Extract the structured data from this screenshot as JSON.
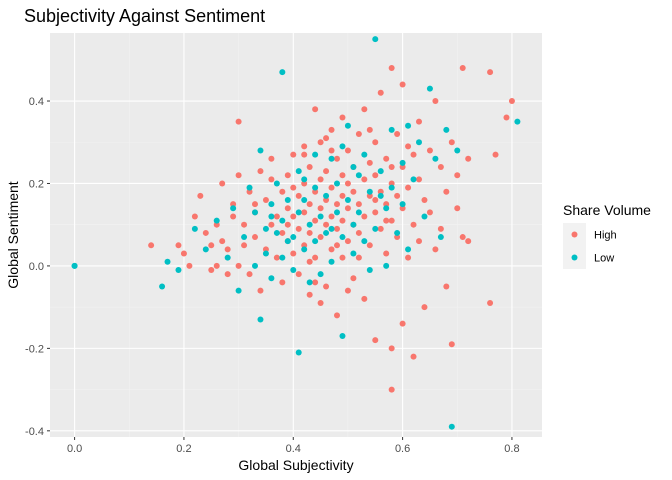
{
  "chart_data": {
    "type": "scatter",
    "title": "Subjectivity Against Sentiment",
    "xlabel": "Global Subjectivity",
    "ylabel": "Global Sentiment",
    "xlim": [
      -0.045,
      0.855
    ],
    "ylim": [
      -0.415,
      0.565
    ],
    "xticks": [
      0.0,
      0.2,
      0.4,
      0.6,
      0.8
    ],
    "xtick_labels": [
      "0.0",
      "0.2",
      "0.4",
      "0.6",
      "0.8"
    ],
    "yticks": [
      -0.4,
      -0.2,
      0.0,
      0.2,
      0.4
    ],
    "ytick_labels": [
      "-0.4",
      "-0.2",
      "0.0",
      "0.2",
      "0.4"
    ],
    "grid": true,
    "legend": {
      "title": "Share Volume",
      "placement": "right",
      "entries": [
        {
          "label": "High",
          "color": "#F8766D"
        },
        {
          "label": "Low",
          "color": "#00BFC4"
        }
      ]
    },
    "series": [
      {
        "name": "High",
        "color": "#F8766D",
        "points": [
          [
            0.14,
            0.05
          ],
          [
            0.19,
            0.05
          ],
          [
            0.2,
            0.03
          ],
          [
            0.21,
            0.0
          ],
          [
            0.22,
            0.12
          ],
          [
            0.23,
            0.17
          ],
          [
            0.24,
            0.08
          ],
          [
            0.25,
            -0.01
          ],
          [
            0.25,
            0.05
          ],
          [
            0.26,
            0.1
          ],
          [
            0.26,
            0.0
          ],
          [
            0.27,
            0.2
          ],
          [
            0.27,
            0.06
          ],
          [
            0.28,
            0.04
          ],
          [
            0.28,
            -0.02
          ],
          [
            0.29,
            0.12
          ],
          [
            0.29,
            0.15
          ],
          [
            0.3,
            0.35
          ],
          [
            0.3,
            0.22
          ],
          [
            0.3,
            0.0
          ],
          [
            0.31,
            0.1
          ],
          [
            0.31,
            0.05
          ],
          [
            0.32,
            -0.02
          ],
          [
            0.32,
            0.18
          ],
          [
            0.33,
            0.13
          ],
          [
            0.33,
            0.07
          ],
          [
            0.34,
            0.23
          ],
          [
            0.34,
            -0.06
          ],
          [
            0.35,
            0.04
          ],
          [
            0.35,
            0.16
          ],
          [
            0.36,
            0.1
          ],
          [
            0.36,
            0.26
          ],
          [
            0.37,
            0.12
          ],
          [
            0.37,
            0.02
          ],
          [
            0.38,
            0.18
          ],
          [
            0.38,
            0.08
          ],
          [
            0.38,
            -0.04
          ],
          [
            0.39,
            0.14
          ],
          [
            0.39,
            0.22
          ],
          [
            0.39,
            0.06
          ],
          [
            0.4,
            0.12
          ],
          [
            0.4,
            0.27
          ],
          [
            0.4,
            0.03
          ],
          [
            0.41,
            0.17
          ],
          [
            0.41,
            0.09
          ],
          [
            0.41,
            -0.02
          ],
          [
            0.42,
            0.2
          ],
          [
            0.42,
            0.13
          ],
          [
            0.42,
            0.05
          ],
          [
            0.42,
            0.29
          ],
          [
            0.43,
            0.15
          ],
          [
            0.43,
            0.24
          ],
          [
            0.43,
            0.08
          ],
          [
            0.43,
            -0.07
          ],
          [
            0.44,
            0.18
          ],
          [
            0.44,
            0.11
          ],
          [
            0.44,
            0.38
          ],
          [
            0.44,
            0.02
          ],
          [
            0.45,
            0.21
          ],
          [
            0.45,
            0.14
          ],
          [
            0.45,
            0.3
          ],
          [
            0.45,
            0.07
          ],
          [
            0.46,
            0.16
          ],
          [
            0.46,
            0.23
          ],
          [
            0.46,
            -0.05
          ],
          [
            0.46,
            0.1
          ],
          [
            0.47,
            0.19
          ],
          [
            0.47,
            0.12
          ],
          [
            0.47,
            0.33
          ],
          [
            0.47,
            0.04
          ],
          [
            0.48,
            0.15
          ],
          [
            0.48,
            0.26
          ],
          [
            0.48,
            0.09
          ],
          [
            0.48,
            -0.12
          ],
          [
            0.49,
            0.17
          ],
          [
            0.49,
            0.22
          ],
          [
            0.49,
            0.11
          ],
          [
            0.49,
            0.02
          ],
          [
            0.5,
            0.14
          ],
          [
            0.5,
            0.28
          ],
          [
            0.5,
            0.2
          ],
          [
            0.5,
            0.06
          ],
          [
            0.51,
            0.18
          ],
          [
            0.51,
            0.1
          ],
          [
            0.51,
            -0.03
          ],
          [
            0.51,
            0.24
          ],
          [
            0.52,
            0.15
          ],
          [
            0.52,
            0.32
          ],
          [
            0.52,
            0.08
          ],
          [
            0.53,
            0.21
          ],
          [
            0.53,
            0.12
          ],
          [
            0.53,
            0.38
          ],
          [
            0.53,
            -0.08
          ],
          [
            0.54,
            0.17
          ],
          [
            0.54,
            0.25
          ],
          [
            0.54,
            0.05
          ],
          [
            0.55,
            0.13
          ],
          [
            0.55,
            0.22
          ],
          [
            0.55,
            -0.18
          ],
          [
            0.55,
            0.3
          ],
          [
            0.56,
            0.18
          ],
          [
            0.56,
            0.09
          ],
          [
            0.56,
            0.42
          ],
          [
            0.57,
            0.15
          ],
          [
            0.57,
            0.26
          ],
          [
            0.57,
            0.03
          ],
          [
            0.58,
            0.2
          ],
          [
            0.58,
            0.11
          ],
          [
            0.58,
            0.48
          ],
          [
            0.58,
            -0.2
          ],
          [
            0.58,
            -0.3
          ],
          [
            0.59,
            0.17
          ],
          [
            0.59,
            0.32
          ],
          [
            0.59,
            0.07
          ],
          [
            0.6,
            0.24
          ],
          [
            0.6,
            0.14
          ],
          [
            0.6,
            -0.14
          ],
          [
            0.6,
            0.44
          ],
          [
            0.61,
            0.19
          ],
          [
            0.61,
            0.02
          ],
          [
            0.62,
            0.27
          ],
          [
            0.62,
            0.1
          ],
          [
            0.62,
            -0.22
          ],
          [
            0.63,
            0.21
          ],
          [
            0.63,
            0.35
          ],
          [
            0.63,
            0.06
          ],
          [
            0.64,
            0.16
          ],
          [
            0.64,
            -0.1
          ],
          [
            0.65,
            0.28
          ],
          [
            0.65,
            0.13
          ],
          [
            0.66,
            0.4
          ],
          [
            0.66,
            0.04
          ],
          [
            0.67,
            0.24
          ],
          [
            0.67,
            0.09
          ],
          [
            0.68,
            0.18
          ],
          [
            0.68,
            -0.05
          ],
          [
            0.69,
            0.3
          ],
          [
            0.69,
            -0.19
          ],
          [
            0.7,
            0.14
          ],
          [
            0.7,
            0.22
          ],
          [
            0.71,
            0.48
          ],
          [
            0.71,
            0.07
          ],
          [
            0.72,
            0.06
          ],
          [
            0.72,
            0.26
          ],
          [
            0.76,
            0.47
          ],
          [
            0.76,
            -0.09
          ],
          [
            0.77,
            0.27
          ],
          [
            0.79,
            0.36
          ],
          [
            0.8,
            0.4
          ],
          [
            0.42,
            0.27
          ],
          [
            0.44,
            -0.04
          ],
          [
            0.36,
            0.21
          ],
          [
            0.52,
            0.02
          ],
          [
            0.47,
            0.28
          ],
          [
            0.39,
            0.1
          ],
          [
            0.58,
            0.24
          ],
          [
            0.61,
            0.29
          ],
          [
            0.33,
            0.15
          ],
          [
            0.49,
            0.36
          ],
          [
            0.55,
            0.16
          ],
          [
            0.43,
            0.01
          ],
          [
            0.46,
            0.31
          ],
          [
            0.5,
            -0.06
          ],
          [
            0.57,
            0.11
          ],
          [
            0.4,
            0.19
          ],
          [
            0.54,
            0.33
          ],
          [
            0.48,
            0.05
          ],
          [
            0.45,
            -0.09
          ]
        ]
      },
      {
        "name": "Low",
        "color": "#00BFC4",
        "points": [
          [
            0.0,
            0.0
          ],
          [
            0.0,
            0.0
          ],
          [
            0.16,
            -0.05
          ],
          [
            0.17,
            0.01
          ],
          [
            0.19,
            -0.01
          ],
          [
            0.22,
            0.09
          ],
          [
            0.24,
            0.04
          ],
          [
            0.26,
            0.11
          ],
          [
            0.28,
            0.02
          ],
          [
            0.29,
            0.14
          ],
          [
            0.3,
            -0.06
          ],
          [
            0.31,
            0.07
          ],
          [
            0.32,
            0.19
          ],
          [
            0.33,
            0.0
          ],
          [
            0.33,
            0.13
          ],
          [
            0.34,
            -0.13
          ],
          [
            0.34,
            0.28
          ],
          [
            0.35,
            0.09
          ],
          [
            0.35,
            0.03
          ],
          [
            0.36,
            0.15
          ],
          [
            0.36,
            -0.03
          ],
          [
            0.37,
            0.08
          ],
          [
            0.37,
            0.2
          ],
          [
            0.38,
            0.47
          ],
          [
            0.38,
            0.11
          ],
          [
            0.38,
            0.02
          ],
          [
            0.39,
            0.16
          ],
          [
            0.4,
            0.07
          ],
          [
            0.4,
            -0.01
          ],
          [
            0.41,
            0.13
          ],
          [
            0.41,
            -0.21
          ],
          [
            0.41,
            0.23
          ],
          [
            0.42,
            0.04
          ],
          [
            0.42,
            0.16
          ],
          [
            0.43,
            0.1
          ],
          [
            0.43,
            -0.04
          ],
          [
            0.44,
            0.19
          ],
          [
            0.44,
            0.06
          ],
          [
            0.45,
            0.12
          ],
          [
            0.45,
            -0.02
          ],
          [
            0.46,
            0.17
          ],
          [
            0.46,
            0.08
          ],
          [
            0.47,
            0.26
          ],
          [
            0.47,
            0.01
          ],
          [
            0.48,
            0.13
          ],
          [
            0.48,
            0.2
          ],
          [
            0.49,
            0.07
          ],
          [
            0.49,
            -0.17
          ],
          [
            0.5,
            0.16
          ],
          [
            0.5,
            0.34
          ],
          [
            0.51,
            0.1
          ],
          [
            0.51,
            0.03
          ],
          [
            0.52,
            0.22
          ],
          [
            0.52,
            0.13
          ],
          [
            0.53,
            0.27
          ],
          [
            0.53,
            0.06
          ],
          [
            0.54,
            0.18
          ],
          [
            0.55,
            0.55
          ],
          [
            0.55,
            0.09
          ],
          [
            0.56,
            0.23
          ],
          [
            0.57,
            0.14
          ],
          [
            0.57,
            0.0
          ],
          [
            0.58,
            0.33
          ],
          [
            0.58,
            0.19
          ],
          [
            0.59,
            0.08
          ],
          [
            0.6,
            0.25
          ],
          [
            0.6,
            0.15
          ],
          [
            0.61,
            0.34
          ],
          [
            0.61,
            0.04
          ],
          [
            0.62,
            0.21
          ],
          [
            0.63,
            0.3
          ],
          [
            0.64,
            0.12
          ],
          [
            0.65,
            0.43
          ],
          [
            0.66,
            0.26
          ],
          [
            0.67,
            0.07
          ],
          [
            0.68,
            0.33
          ],
          [
            0.69,
            -0.39
          ],
          [
            0.7,
            0.28
          ],
          [
            0.81,
            0.35
          ],
          [
            0.39,
            0.06
          ],
          [
            0.44,
            0.27
          ],
          [
            0.47,
            0.09
          ],
          [
            0.51,
            0.24
          ],
          [
            0.54,
            -0.01
          ],
          [
            0.36,
            0.12
          ],
          [
            0.42,
            0.21
          ],
          [
            0.56,
            0.17
          ],
          [
            0.49,
            0.29
          ]
        ]
      }
    ]
  }
}
